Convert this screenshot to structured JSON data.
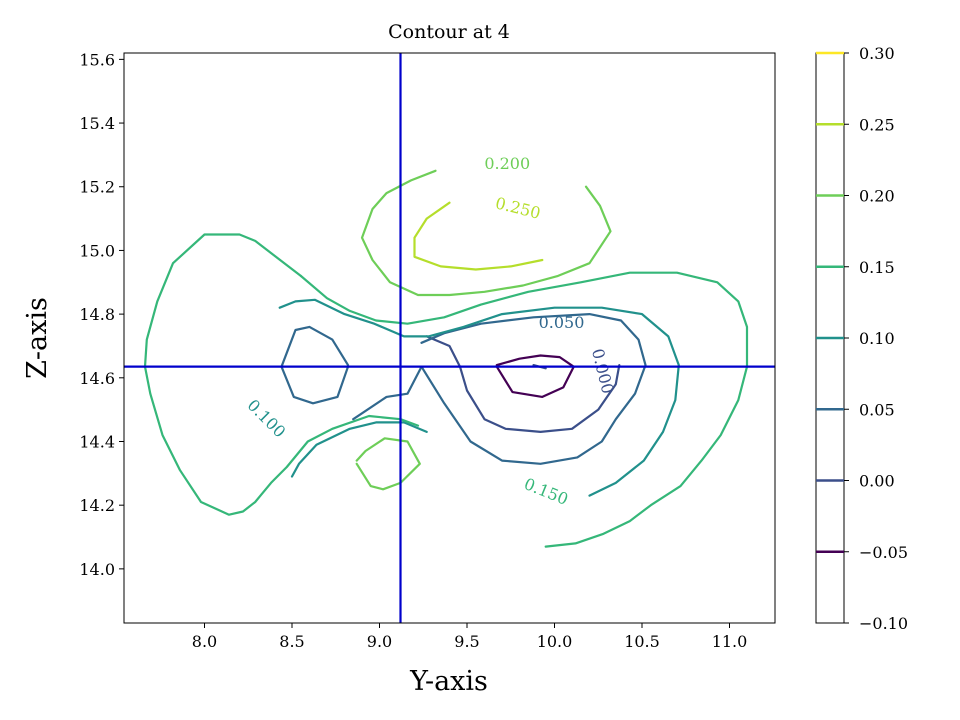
{
  "chart_data": {
    "type": "contour",
    "title": "Contour at 4",
    "xlabel": "Y-axis",
    "ylabel": "Z-axis",
    "xlim": [
      7.54,
      11.26
    ],
    "ylim": [
      13.83,
      15.62
    ],
    "xticks": [
      "8.0",
      "8.5",
      "9.0",
      "9.5",
      "10.0",
      "10.5",
      "11.0"
    ],
    "xtick_values": [
      8.0,
      8.5,
      9.0,
      9.5,
      10.0,
      10.5,
      11.0
    ],
    "yticks": [
      "14.0",
      "14.2",
      "14.4",
      "14.6",
      "14.8",
      "15.0",
      "15.2",
      "15.4",
      "15.6"
    ],
    "ytick_values": [
      14.0,
      14.2,
      14.4,
      14.6,
      14.8,
      15.0,
      15.2,
      15.4,
      15.6
    ],
    "crosshair": {
      "x": 9.12,
      "y": 14.635,
      "color": "#0000cc"
    },
    "colorbar": {
      "min": -0.1,
      "max": 0.3,
      "levels": [
        -0.05,
        0.0,
        0.05,
        0.1,
        0.15,
        0.2,
        0.25,
        0.3
      ],
      "tick_labels": [
        "−0.10",
        "−0.05",
        "0.00",
        "0.05",
        "0.10",
        "0.15",
        "0.20",
        "0.25",
        "0.30"
      ],
      "tick_values": [
        -0.1,
        -0.05,
        0.0,
        0.05,
        0.1,
        0.15,
        0.2,
        0.25,
        0.3
      ]
    },
    "series": [
      {
        "level": -0.05,
        "color": "#440154",
        "paths": [
          [
            [
              9.67,
              14.64
            ],
            [
              9.8,
              14.66
            ],
            [
              9.92,
              14.67
            ],
            [
              10.03,
              14.665
            ],
            [
              10.11,
              14.635
            ],
            [
              10.05,
              14.57
            ],
            [
              9.93,
              14.54
            ],
            [
              9.76,
              14.555
            ],
            [
              9.67,
              14.635
            ]
          ]
        ]
      },
      {
        "level": 0.0,
        "color": "#3b4f8a",
        "paths": [
          [
            [
              9.27,
              14.73
            ],
            [
              9.4,
              14.7
            ],
            [
              9.46,
              14.635
            ],
            [
              9.5,
              14.56
            ],
            [
              9.6,
              14.47
            ],
            [
              9.72,
              14.44
            ],
            [
              9.92,
              14.43
            ],
            [
              10.1,
              14.44
            ],
            [
              10.25,
              14.5
            ],
            [
              10.35,
              14.58
            ],
            [
              10.37,
              14.64
            ]
          ],
          [
            [
              9.88,
              14.64
            ],
            [
              9.95,
              14.63
            ]
          ]
        ]
      },
      {
        "level": 0.05,
        "color": "#31688e",
        "paths": [
          [
            [
              8.82,
              14.64
            ],
            [
              8.73,
              14.72
            ],
            [
              8.6,
              14.76
            ],
            [
              8.52,
              14.75
            ],
            [
              8.44,
              14.635
            ],
            [
              8.51,
              14.54
            ],
            [
              8.62,
              14.52
            ],
            [
              8.76,
              14.54
            ],
            [
              8.82,
              14.635
            ]
          ],
          [
            [
              9.24,
              14.635
            ],
            [
              9.37,
              14.52
            ],
            [
              9.52,
              14.4
            ],
            [
              9.7,
              14.34
            ],
            [
              9.92,
              14.33
            ],
            [
              10.13,
              14.35
            ],
            [
              10.27,
              14.4
            ],
            [
              10.35,
              14.47
            ],
            [
              10.46,
              14.55
            ],
            [
              10.52,
              14.64
            ],
            [
              10.48,
              14.72
            ],
            [
              10.38,
              14.78
            ],
            [
              10.2,
              14.8
            ],
            [
              9.88,
              14.79
            ],
            [
              9.58,
              14.77
            ],
            [
              9.37,
              14.74
            ],
            [
              9.24,
              14.71
            ]
          ],
          [
            [
              8.85,
              14.47
            ],
            [
              9.04,
              14.54
            ],
            [
              9.16,
              14.55
            ],
            [
              9.24,
              14.635
            ]
          ]
        ]
      },
      {
        "level": 0.1,
        "color": "#21918c",
        "paths": [
          [
            [
              8.43,
              14.82
            ],
            [
              8.52,
              14.84
            ],
            [
              8.63,
              14.845
            ],
            [
              8.8,
              14.8
            ],
            [
              8.97,
              14.77
            ],
            [
              9.14,
              14.73
            ],
            [
              9.28,
              14.73
            ],
            [
              9.48,
              14.76
            ],
            [
              9.7,
              14.8
            ],
            [
              10.0,
              14.82
            ],
            [
              10.27,
              14.82
            ],
            [
              10.5,
              14.8
            ],
            [
              10.65,
              14.73
            ],
            [
              10.71,
              14.64
            ],
            [
              10.69,
              14.53
            ],
            [
              10.62,
              14.43
            ],
            [
              10.51,
              14.34
            ],
            [
              10.35,
              14.27
            ],
            [
              10.2,
              14.23
            ]
          ],
          [
            [
              8.5,
              14.29
            ],
            [
              8.54,
              14.33
            ],
            [
              8.64,
              14.39
            ],
            [
              8.83,
              14.44
            ],
            [
              8.98,
              14.46
            ],
            [
              9.14,
              14.46
            ],
            [
              9.27,
              14.43
            ]
          ]
        ]
      },
      {
        "level": 0.15,
        "color": "#35b779",
        "paths": [
          [
            [
              8.55,
              14.92
            ],
            [
              8.29,
              15.03
            ],
            [
              8.2,
              15.05
            ],
            [
              8.0,
              15.05
            ],
            [
              7.82,
              14.96
            ],
            [
              7.73,
              14.84
            ],
            [
              7.67,
              14.72
            ],
            [
              7.66,
              14.635
            ],
            [
              7.69,
              14.55
            ],
            [
              7.76,
              14.42
            ],
            [
              7.86,
              14.31
            ],
            [
              7.98,
              14.21
            ],
            [
              8.14,
              14.17
            ],
            [
              8.22,
              14.18
            ],
            [
              8.29,
              14.21
            ],
            [
              8.32,
              14.23
            ],
            [
              8.38,
              14.27
            ],
            [
              8.47,
              14.32
            ],
            [
              8.59,
              14.4
            ],
            [
              8.73,
              14.44
            ],
            [
              8.94,
              14.48
            ],
            [
              9.12,
              14.47
            ],
            [
              9.22,
              14.45
            ]
          ],
          [
            [
              8.55,
              14.92
            ],
            [
              8.7,
              14.85
            ],
            [
              8.83,
              14.81
            ],
            [
              8.98,
              14.78
            ],
            [
              9.16,
              14.77
            ],
            [
              9.37,
              14.79
            ],
            [
              9.58,
              14.83
            ],
            [
              9.85,
              14.87
            ],
            [
              10.15,
              14.9
            ],
            [
              10.43,
              14.93
            ],
            [
              10.7,
              14.93
            ],
            [
              10.93,
              14.9
            ],
            [
              11.05,
              14.84
            ],
            [
              11.1,
              14.76
            ],
            [
              11.1,
              14.635
            ],
            [
              11.05,
              14.53
            ],
            [
              10.95,
              14.42
            ],
            [
              10.84,
              14.34
            ],
            [
              10.72,
              14.26
            ],
            [
              10.55,
              14.2
            ],
            [
              10.43,
              14.15
            ],
            [
              10.28,
              14.11
            ],
            [
              10.12,
              14.08
            ],
            [
              9.95,
              14.07
            ]
          ]
        ]
      },
      {
        "level": 0.2,
        "color": "#6ece58",
        "paths": [
          [
            [
              9.32,
              15.25
            ],
            [
              9.18,
              15.22
            ],
            [
              9.04,
              15.18
            ],
            [
              8.96,
              15.13
            ],
            [
              8.9,
              15.04
            ],
            [
              8.96,
              14.97
            ],
            [
              9.06,
              14.9
            ],
            [
              9.22,
              14.86
            ],
            [
              9.4,
              14.86
            ],
            [
              9.6,
              14.87
            ],
            [
              9.82,
              14.89
            ],
            [
              10.02,
              14.92
            ],
            [
              10.2,
              14.96
            ],
            [
              10.32,
              15.06
            ],
            [
              10.26,
              15.14
            ],
            [
              10.18,
              15.2
            ]
          ],
          [
            [
              8.87,
              14.34
            ],
            [
              8.92,
              14.37
            ],
            [
              9.03,
              14.41
            ],
            [
              9.16,
              14.4
            ],
            [
              9.23,
              14.33
            ],
            [
              9.12,
              14.27
            ],
            [
              9.02,
              14.25
            ],
            [
              8.95,
              14.26
            ],
            [
              8.87,
              14.33
            ]
          ]
        ]
      },
      {
        "level": 0.25,
        "color": "#b5de2b",
        "paths": [
          [
            [
              9.4,
              15.15
            ],
            [
              9.27,
              15.1
            ],
            [
              9.2,
              15.04
            ],
            [
              9.2,
              14.98
            ],
            [
              9.35,
              14.95
            ],
            [
              9.55,
              14.94
            ],
            [
              9.75,
              14.95
            ],
            [
              9.93,
              14.97
            ]
          ]
        ]
      }
    ],
    "labels": [
      {
        "text": "0.200",
        "x": 9.73,
        "y": 15.27,
        "rotation": 0,
        "color": "#6ece58"
      },
      {
        "text": "0.250",
        "x": 9.79,
        "y": 15.13,
        "rotation": 14,
        "color": "#b5de2b"
      },
      {
        "text": "0.050",
        "x": 10.04,
        "y": 14.77,
        "rotation": 0,
        "color": "#31688e"
      },
      {
        "text": "0.000",
        "x": 10.27,
        "y": 14.62,
        "rotation": 76,
        "color": "#3b4f8a"
      },
      {
        "text": "0.100",
        "x": 8.35,
        "y": 14.47,
        "rotation": 45,
        "color": "#21918c"
      },
      {
        "text": "0.150",
        "x": 9.95,
        "y": 14.24,
        "rotation": 22,
        "color": "#35b779"
      }
    ]
  }
}
